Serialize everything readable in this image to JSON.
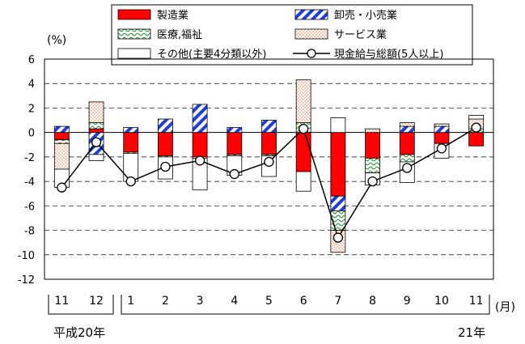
{
  "chart_data": {
    "type": "bar",
    "stacked": true,
    "y_unit_label": "(%)",
    "ylim": [
      -12,
      6
    ],
    "y_ticks": [
      6,
      4,
      2,
      0,
      -2,
      -4,
      -6,
      -8,
      -10,
      -12
    ],
    "grid": "horizontal dashed",
    "legend_position": "top",
    "categories": [
      "11",
      "12",
      "1",
      "2",
      "3",
      "4",
      "5",
      "6",
      "7",
      "8",
      "9",
      "10",
      "11"
    ],
    "x_unit_label": "(月)",
    "era_labels": [
      "平成20年",
      "21年"
    ],
    "series": [
      {
        "name": "製造業",
        "pattern": "solid",
        "color": "#ff0000",
        "values": [
          -0.6,
          0.3,
          -1.6,
          -1.9,
          -2.0,
          -1.8,
          -1.8,
          -3.2,
          -5.2,
          -2.1,
          -1.8,
          -0.9,
          -1.1
        ]
      },
      {
        "name": "卸売・小売業",
        "pattern": "diagonal-stripes",
        "color": "#1f3fd8",
        "values": [
          0.5,
          -1.8,
          0.4,
          1.1,
          2.3,
          0.4,
          1.0,
          0.0,
          -1.2,
          0.0,
          0.5,
          0.5,
          0.0
        ]
      },
      {
        "name": "医療,福祉",
        "pattern": "green-wave",
        "color": "#3a9a4a",
        "values": [
          -0.3,
          0.5,
          -0.1,
          -0.1,
          -0.1,
          -0.1,
          -0.1,
          0.8,
          -1.6,
          -1.2,
          -0.6,
          0.0,
          0.3
        ]
      },
      {
        "name": "サービス業",
        "pattern": "orange-dots",
        "color": "#f08050",
        "values": [
          -2.1,
          1.7,
          0.0,
          0.0,
          0.0,
          0.0,
          0.0,
          3.5,
          -1.8,
          0.3,
          0.3,
          0.2,
          0.8
        ]
      },
      {
        "name": "その他(主要4分類以外)",
        "pattern": "white",
        "color": "#ffffff",
        "values": [
          -1.5,
          -0.5,
          -2.3,
          -1.8,
          -2.6,
          -1.6,
          -1.7,
          -1.6,
          1.2,
          -1.0,
          -1.7,
          -1.2,
          0.3
        ]
      },
      {
        "name": "現金給与総額(5人以上)",
        "type": "line",
        "color": "#000000",
        "values": [
          -4.5,
          -0.8,
          -4.0,
          -2.8,
          -2.3,
          -3.4,
          -2.4,
          0.3,
          -8.6,
          -4.0,
          -2.9,
          -1.3,
          0.4
        ]
      }
    ]
  }
}
